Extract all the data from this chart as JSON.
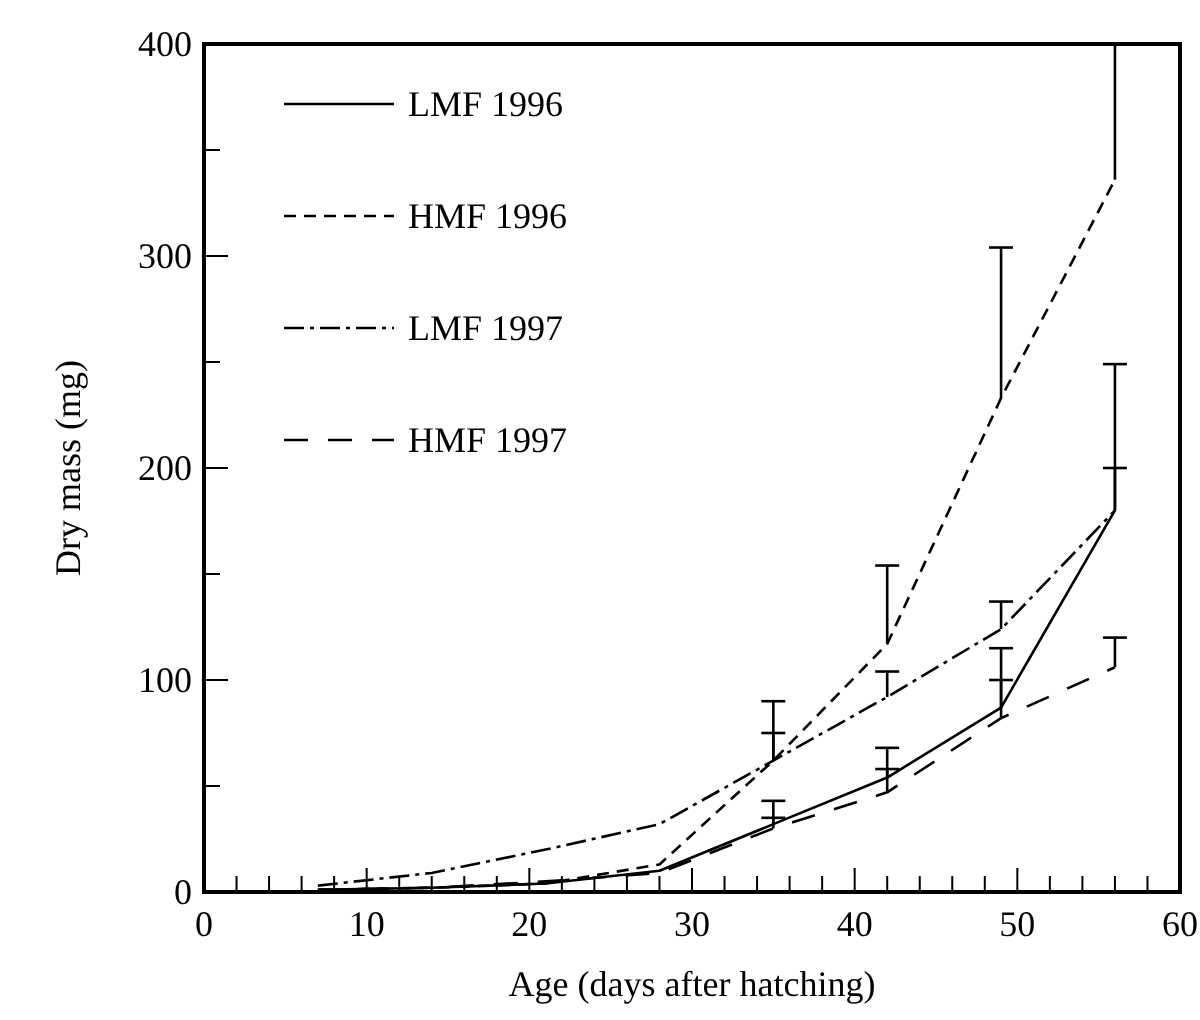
{
  "chart_data": {
    "type": "line",
    "xlabel": "Age (days after hatching)",
    "ylabel": "Dry mass (mg)",
    "x": [
      7,
      14,
      21,
      28,
      35,
      42,
      49,
      56
    ],
    "xlim": [
      0,
      60
    ],
    "xticks": [
      0,
      {
        "value": 2,
        "label": null
      },
      {
        "value": 4,
        "label": null
      },
      {
        "value": 6,
        "label": null
      },
      {
        "value": 8,
        "label": null
      },
      10,
      {
        "value": 12,
        "label": null
      },
      {
        "value": 14,
        "label": null
      },
      {
        "value": 16,
        "label": null
      },
      {
        "value": 18,
        "label": null
      },
      20,
      {
        "value": 22,
        "label": null
      },
      {
        "value": 24,
        "label": null
      },
      {
        "value": 26,
        "label": null
      },
      {
        "value": 28,
        "label": null
      },
      30,
      {
        "value": 32,
        "label": null
      },
      {
        "value": 34,
        "label": null
      },
      {
        "value": 36,
        "label": null
      },
      {
        "value": 38,
        "label": null
      },
      40,
      {
        "value": 42,
        "label": null
      },
      {
        "value": 44,
        "label": null
      },
      {
        "value": 46,
        "label": null
      },
      {
        "value": 48,
        "label": null
      },
      50,
      {
        "value": 52,
        "label": null
      },
      {
        "value": 54,
        "label": null
      },
      {
        "value": 56,
        "label": null
      },
      {
        "value": 58,
        "label": null
      },
      60
    ],
    "ylim": [
      0,
      400
    ],
    "yticks": [
      0,
      {
        "value": 50,
        "label": null
      },
      100,
      {
        "value": 150,
        "label": null
      },
      200,
      {
        "value": 250,
        "label": null
      },
      300,
      {
        "value": 350,
        "label": null
      },
      400
    ],
    "grid": false,
    "legend": "top left",
    "marker": "none",
    "series": [
      {
        "name": "LMF 1996",
        "color": "#000000",
        "line_style": "solid",
        "values": [
          1,
          2,
          4,
          10,
          32,
          54,
          87,
          180
        ],
        "errors": [
          null,
          null,
          null,
          null,
          [
            32,
            43
          ],
          [
            54,
            68
          ],
          [
            87,
            115
          ],
          [
            180,
            249
          ]
        ]
      },
      {
        "name": "HMF 1996",
        "color": "#000000",
        "line_style": "dashed",
        "values": [
          1,
          2,
          4,
          13,
          62,
          117,
          233,
          336
        ],
        "errors": [
          null,
          null,
          null,
          null,
          [
            62,
            90
          ],
          [
            117,
            154
          ],
          [
            233,
            304
          ],
          [
            336,
            400
          ]
        ]
      },
      {
        "name": "LMF 1997",
        "color": "#000000",
        "line_style": "dashdot",
        "values": [
          3,
          9,
          20,
          32,
          62,
          92,
          124,
          180
        ],
        "errors": [
          null,
          null,
          null,
          null,
          [
            62,
            75
          ],
          [
            92,
            104
          ],
          [
            124,
            137
          ],
          [
            180,
            200
          ]
        ]
      },
      {
        "name": "HMF 1997",
        "color": "#000000",
        "line_style": "longdash",
        "values": [
          1,
          2,
          5,
          9,
          30,
          47,
          82,
          106
        ],
        "errors": [
          null,
          null,
          null,
          null,
          [
            30,
            35
          ],
          [
            47,
            58
          ],
          [
            82,
            100
          ],
          [
            106,
            120
          ]
        ]
      }
    ]
  }
}
